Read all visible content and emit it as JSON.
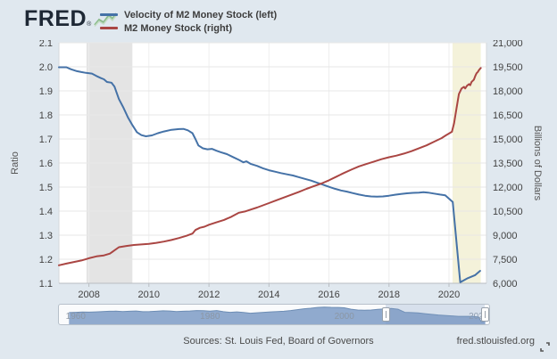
{
  "header": {
    "logo_text": "FRED",
    "registered": "®",
    "legend": [
      {
        "label": "Velocity of M2 Money Stock (left)",
        "color": "#4572a7"
      },
      {
        "label": "M2 Money Stock (right)",
        "color": "#aa4643"
      }
    ]
  },
  "chart_data": {
    "type": "line",
    "title": "",
    "x_axis": {
      "range": [
        2007.0,
        2021.25
      ],
      "ticks": [
        2008,
        2010,
        2012,
        2014,
        2016,
        2018,
        2020
      ],
      "grid": true
    },
    "left_axis": {
      "label": "Ratio",
      "range": [
        1.1,
        2.1
      ],
      "ticks": [
        1.1,
        1.2,
        1.3,
        1.4,
        1.5,
        1.6,
        1.7,
        1.8,
        1.9,
        2.0,
        2.1
      ]
    },
    "right_axis": {
      "label": "Billions of Dollars",
      "range": [
        6000,
        21000
      ],
      "ticks": [
        6000,
        7500,
        9000,
        10500,
        12000,
        13500,
        15000,
        16500,
        18000,
        19500,
        21000
      ]
    },
    "shaded_regions": [
      {
        "name": "recession-2008",
        "start": 2007.92,
        "end": 2009.45,
        "color": "#e4e4e4"
      },
      {
        "name": "recession-2020",
        "start": 2020.12,
        "end": 2021.06,
        "color": "#f4f2da"
      }
    ],
    "series": [
      {
        "name": "Velocity of M2 Money Stock",
        "axis": "left",
        "color": "#4572a7",
        "points": [
          [
            2007.0,
            1.998
          ],
          [
            2007.25,
            1.998
          ],
          [
            2007.4,
            1.99
          ],
          [
            2007.6,
            1.982
          ],
          [
            2007.75,
            1.978
          ],
          [
            2007.9,
            1.975
          ],
          [
            2008.1,
            1.972
          ],
          [
            2008.25,
            1.962
          ],
          [
            2008.4,
            1.953
          ],
          [
            2008.5,
            1.948
          ],
          [
            2008.6,
            1.937
          ],
          [
            2008.75,
            1.934
          ],
          [
            2008.85,
            1.918
          ],
          [
            2009.0,
            1.866
          ],
          [
            2009.15,
            1.83
          ],
          [
            2009.3,
            1.79
          ],
          [
            2009.45,
            1.757
          ],
          [
            2009.6,
            1.728
          ],
          [
            2009.75,
            1.716
          ],
          [
            2009.9,
            1.711
          ],
          [
            2010.1,
            1.715
          ],
          [
            2010.3,
            1.724
          ],
          [
            2010.5,
            1.731
          ],
          [
            2010.75,
            1.738
          ],
          [
            2011.0,
            1.741
          ],
          [
            2011.15,
            1.742
          ],
          [
            2011.3,
            1.736
          ],
          [
            2011.45,
            1.724
          ],
          [
            2011.55,
            1.7
          ],
          [
            2011.65,
            1.673
          ],
          [
            2011.8,
            1.661
          ],
          [
            2011.95,
            1.657
          ],
          [
            2012.1,
            1.659
          ],
          [
            2012.25,
            1.651
          ],
          [
            2012.4,
            1.645
          ],
          [
            2012.6,
            1.637
          ],
          [
            2012.8,
            1.625
          ],
          [
            2013.0,
            1.613
          ],
          [
            2013.15,
            1.603
          ],
          [
            2013.25,
            1.607
          ],
          [
            2013.4,
            1.596
          ],
          [
            2013.6,
            1.588
          ],
          [
            2013.8,
            1.578
          ],
          [
            2014.0,
            1.57
          ],
          [
            2014.2,
            1.564
          ],
          [
            2014.4,
            1.558
          ],
          [
            2014.6,
            1.553
          ],
          [
            2014.8,
            1.548
          ],
          [
            2015.0,
            1.541
          ],
          [
            2015.2,
            1.534
          ],
          [
            2015.4,
            1.527
          ],
          [
            2015.6,
            1.518
          ],
          [
            2015.8,
            1.51
          ],
          [
            2016.0,
            1.501
          ],
          [
            2016.2,
            1.493
          ],
          [
            2016.4,
            1.486
          ],
          [
            2016.6,
            1.481
          ],
          [
            2016.8,
            1.475
          ],
          [
            2017.0,
            1.469
          ],
          [
            2017.2,
            1.464
          ],
          [
            2017.4,
            1.461
          ],
          [
            2017.6,
            1.46
          ],
          [
            2017.8,
            1.461
          ],
          [
            2018.0,
            1.464
          ],
          [
            2018.2,
            1.468
          ],
          [
            2018.4,
            1.471
          ],
          [
            2018.6,
            1.474
          ],
          [
            2018.8,
            1.476
          ],
          [
            2019.0,
            1.477
          ],
          [
            2019.15,
            1.479
          ],
          [
            2019.3,
            1.477
          ],
          [
            2019.5,
            1.473
          ],
          [
            2019.7,
            1.469
          ],
          [
            2019.875,
            1.466
          ],
          [
            2020.0,
            1.452
          ],
          [
            2020.125,
            1.438
          ],
          [
            2020.375,
            1.104
          ],
          [
            2020.625,
            1.121
          ],
          [
            2020.875,
            1.134
          ],
          [
            2021.04,
            1.152
          ]
        ]
      },
      {
        "name": "M2 Money Stock",
        "axis": "right",
        "color": "#aa4643",
        "points": [
          [
            2007.0,
            7120
          ],
          [
            2007.25,
            7230
          ],
          [
            2007.5,
            7330
          ],
          [
            2007.75,
            7420
          ],
          [
            2008.0,
            7560
          ],
          [
            2008.25,
            7680
          ],
          [
            2008.5,
            7740
          ],
          [
            2008.7,
            7850
          ],
          [
            2008.85,
            8050
          ],
          [
            2009.0,
            8250
          ],
          [
            2009.25,
            8330
          ],
          [
            2009.5,
            8390
          ],
          [
            2009.75,
            8420
          ],
          [
            2010.0,
            8460
          ],
          [
            2010.25,
            8520
          ],
          [
            2010.5,
            8600
          ],
          [
            2010.75,
            8700
          ],
          [
            2011.0,
            8820
          ],
          [
            2011.25,
            8960
          ],
          [
            2011.45,
            9100
          ],
          [
            2011.55,
            9320
          ],
          [
            2011.7,
            9460
          ],
          [
            2011.85,
            9530
          ],
          [
            2012.0,
            9650
          ],
          [
            2012.25,
            9800
          ],
          [
            2012.5,
            9950
          ],
          [
            2012.75,
            10150
          ],
          [
            2013.0,
            10400
          ],
          [
            2013.2,
            10480
          ],
          [
            2013.4,
            10600
          ],
          [
            2013.6,
            10720
          ],
          [
            2013.8,
            10860
          ],
          [
            2014.0,
            11000
          ],
          [
            2014.25,
            11180
          ],
          [
            2014.5,
            11350
          ],
          [
            2014.75,
            11520
          ],
          [
            2015.0,
            11700
          ],
          [
            2015.25,
            11890
          ],
          [
            2015.5,
            12060
          ],
          [
            2015.75,
            12220
          ],
          [
            2016.0,
            12420
          ],
          [
            2016.25,
            12650
          ],
          [
            2016.5,
            12880
          ],
          [
            2016.75,
            13090
          ],
          [
            2017.0,
            13290
          ],
          [
            2017.25,
            13440
          ],
          [
            2017.5,
            13590
          ],
          [
            2017.75,
            13740
          ],
          [
            2018.0,
            13860
          ],
          [
            2018.25,
            13960
          ],
          [
            2018.5,
            14090
          ],
          [
            2018.75,
            14240
          ],
          [
            2019.0,
            14420
          ],
          [
            2019.25,
            14600
          ],
          [
            2019.5,
            14830
          ],
          [
            2019.75,
            15050
          ],
          [
            2019.9,
            15230
          ],
          [
            2020.0,
            15340
          ],
          [
            2020.1,
            15450
          ],
          [
            2020.17,
            15980
          ],
          [
            2020.25,
            16900
          ],
          [
            2020.33,
            17800
          ],
          [
            2020.42,
            18150
          ],
          [
            2020.5,
            18250
          ],
          [
            2020.54,
            18150
          ],
          [
            2020.6,
            18320
          ],
          [
            2020.67,
            18420
          ],
          [
            2020.71,
            18350
          ],
          [
            2020.75,
            18550
          ],
          [
            2020.83,
            18700
          ],
          [
            2020.88,
            18950
          ],
          [
            2020.92,
            19100
          ],
          [
            2020.96,
            19180
          ],
          [
            2021.0,
            19300
          ],
          [
            2021.06,
            19430
          ]
        ]
      }
    ]
  },
  "slider": {
    "range": [
      1957.5,
      2021.3
    ],
    "value_range": [
      1.05,
      2.2
    ],
    "selection": [
      2006.1,
      2020.9
    ],
    "labels": [
      {
        "year": 1960,
        "text": "1960"
      },
      {
        "year": 1980,
        "text": "1980"
      },
      {
        "year": 2000,
        "text": "2000"
      },
      {
        "year": 2020,
        "text": "2020"
      }
    ],
    "sparkline": [
      [
        1959,
        1.72
      ],
      [
        1960,
        1.74
      ],
      [
        1961,
        1.76
      ],
      [
        1962,
        1.75
      ],
      [
        1963,
        1.77
      ],
      [
        1964,
        1.79
      ],
      [
        1965,
        1.81
      ],
      [
        1966,
        1.82
      ],
      [
        1967,
        1.79
      ],
      [
        1968,
        1.81
      ],
      [
        1969,
        1.83
      ],
      [
        1970,
        1.78
      ],
      [
        1971,
        1.79
      ],
      [
        1972,
        1.81
      ],
      [
        1973,
        1.84
      ],
      [
        1974,
        1.83
      ],
      [
        1975,
        1.79
      ],
      [
        1976,
        1.81
      ],
      [
        1977,
        1.83
      ],
      [
        1978,
        1.86
      ],
      [
        1979,
        1.85
      ],
      [
        1980,
        1.82
      ],
      [
        1981,
        1.86
      ],
      [
        1982,
        1.78
      ],
      [
        1983,
        1.74
      ],
      [
        1984,
        1.77
      ],
      [
        1985,
        1.73
      ],
      [
        1986,
        1.68
      ],
      [
        1987,
        1.71
      ],
      [
        1988,
        1.74
      ],
      [
        1989,
        1.77
      ],
      [
        1990,
        1.79
      ],
      [
        1991,
        1.81
      ],
      [
        1992,
        1.86
      ],
      [
        1993,
        1.92
      ],
      [
        1994,
        1.98
      ],
      [
        1995,
        2.02
      ],
      [
        1996,
        2.07
      ],
      [
        1997,
        2.1
      ],
      [
        1998,
        2.08
      ],
      [
        1999,
        2.07
      ],
      [
        2000,
        2.05
      ],
      [
        2001,
        1.95
      ],
      [
        2002,
        1.9
      ],
      [
        2003,
        1.88
      ],
      [
        2004,
        1.9
      ],
      [
        2005,
        1.94
      ],
      [
        2006,
        1.97
      ],
      [
        2007,
        2.0
      ],
      [
        2008,
        1.95
      ],
      [
        2009,
        1.74
      ],
      [
        2010,
        1.72
      ],
      [
        2011,
        1.7
      ],
      [
        2012,
        1.65
      ],
      [
        2013,
        1.6
      ],
      [
        2014,
        1.56
      ],
      [
        2015,
        1.53
      ],
      [
        2016,
        1.5
      ],
      [
        2017,
        1.47
      ],
      [
        2018,
        1.47
      ],
      [
        2019,
        1.47
      ],
      [
        2020,
        1.42
      ],
      [
        2020.4,
        1.1
      ],
      [
        2021,
        1.14
      ]
    ]
  },
  "footer": {
    "sources": "Sources: St. Louis Fed, Board of Governors",
    "site": "fred.stlouisfed.org"
  },
  "colors": {
    "background": "#e0e8ef",
    "plot_background": "#ffffff",
    "grid": "#e7e7e7",
    "axis_line": "#b9bdc2",
    "tick_text": "#424242",
    "slider_fill": "#90aace",
    "slider_line": "#6d8db4",
    "slider_label": "#8b95a1",
    "logo_green": "#8cbc8c"
  }
}
